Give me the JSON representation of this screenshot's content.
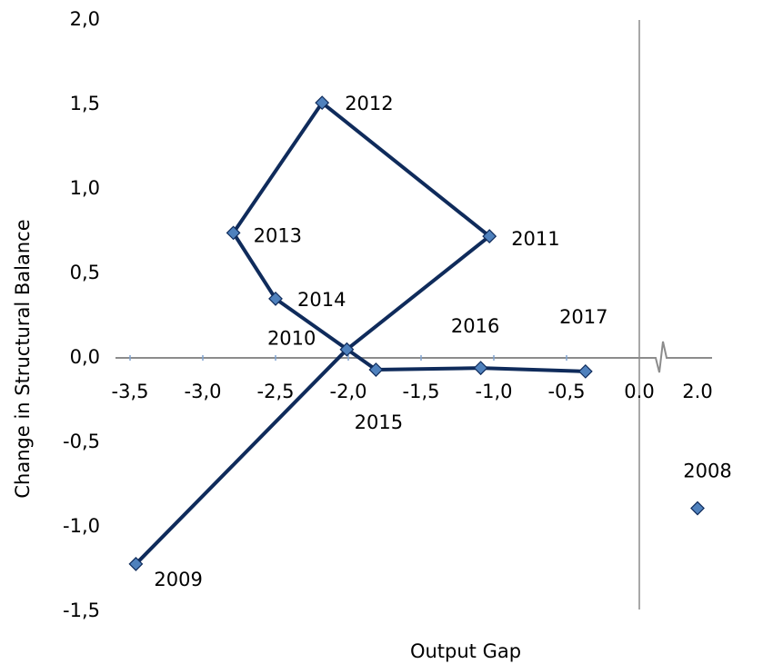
{
  "chart_data": {
    "type": "line",
    "x_label": "Output Gap",
    "y_label": "Change in Structural Balance",
    "xlim": [
      -3.6,
      2.1
    ],
    "x_break": [
      0.1,
      1.8
    ],
    "xticks": [
      {
        "value": -3.5,
        "label": "-3,5"
      },
      {
        "value": -3.0,
        "label": "-3,0"
      },
      {
        "value": -2.5,
        "label": "-2,5"
      },
      {
        "value": -2.0,
        "label": "-2,0"
      },
      {
        "value": -1.5,
        "label": "-1,5"
      },
      {
        "value": -1.0,
        "label": "-1,0"
      },
      {
        "value": -0.5,
        "label": "-0,5"
      },
      {
        "value": 0,
        "label": "0.0"
      },
      {
        "value": 2,
        "label": "2.0"
      }
    ],
    "ylim": [
      -1.5,
      2.0
    ],
    "yticks": [
      {
        "value": -1.5,
        "label": "-1,5"
      },
      {
        "value": -1.0,
        "label": "-1,0"
      },
      {
        "value": -0.5,
        "label": "-0,5"
      },
      {
        "value": 0,
        "label": "0,0"
      },
      {
        "value": 0.5,
        "label": "0,5"
      },
      {
        "value": 1.0,
        "label": "1,0"
      },
      {
        "value": 1.5,
        "label": "1,5"
      },
      {
        "value": 2.0,
        "label": "2,0"
      }
    ],
    "series": [
      {
        "color": "#0f2b5b",
        "marker_color": "#4f81bd",
        "line": true,
        "labels": [
          "2009",
          "2010",
          "2011",
          "2012",
          "2013",
          "2014",
          "2015",
          "2016",
          "2017"
        ],
        "x": [
          -3.46,
          -2.01,
          -1.03,
          -2.18,
          -2.79,
          -2.5,
          -1.81,
          -1.09,
          -0.37
        ],
        "values": [
          -1.22,
          0.05,
          0.72,
          1.51,
          0.74,
          0.35,
          -0.07,
          -0.06,
          -0.08
        ]
      },
      {
        "color": "#0f2b5b",
        "marker_color": "#4f81bd",
        "line": false,
        "labels": [
          "2008"
        ],
        "x": [
          2.0
        ],
        "values": [
          -0.89
        ]
      }
    ]
  }
}
